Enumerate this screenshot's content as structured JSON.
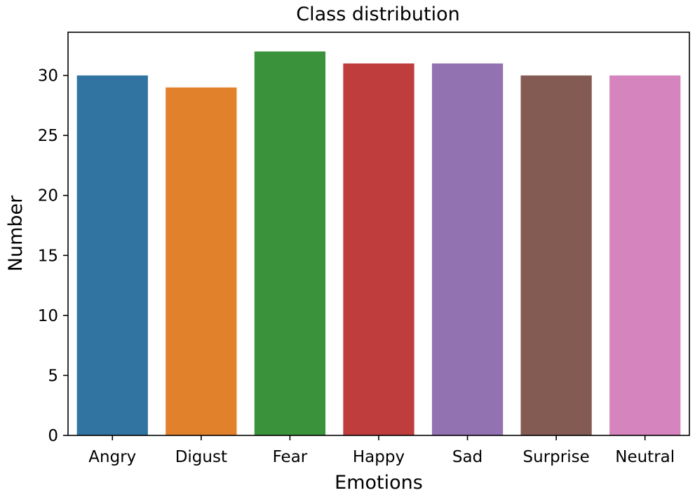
{
  "chart_data": {
    "type": "bar",
    "title": "Class distribution",
    "xlabel": "Emotions",
    "ylabel": "Number",
    "categories": [
      "Angry",
      "Digust",
      "Fear",
      "Happy",
      "Sad",
      "Surprise",
      "Neutral"
    ],
    "values": [
      30,
      29,
      32,
      31,
      31,
      30,
      30
    ],
    "colors": [
      "#3274a1",
      "#e1812c",
      "#3a923a",
      "#c03d3e",
      "#9372b2",
      "#845b53",
      "#d684bd"
    ],
    "yticks": [
      0,
      5,
      10,
      15,
      20,
      25,
      30
    ],
    "ylim": [
      0,
      33.6
    ],
    "grid": false,
    "legend": "none"
  }
}
